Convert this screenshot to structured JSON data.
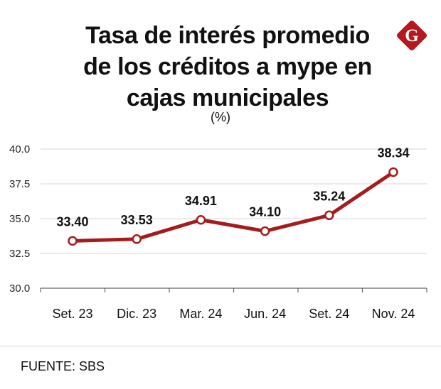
{
  "header": {
    "title": "Tasa de interés promedio\nde los créditos a mype en\ncajas municipales",
    "subtitle": "(%)"
  },
  "brand": {
    "logo_letter": "G",
    "logo_color": "#b3191f",
    "logo_icon": "diamond-g-logo"
  },
  "chart_data": {
    "type": "line",
    "title": "Tasa de interés promedio de los créditos a mype en cajas municipales",
    "subtitle": "(%)",
    "xlabel": "",
    "ylabel": "",
    "categories": [
      "Set. 23",
      "Dic. 23",
      "Mar. 24",
      "Jun. 24",
      "Set. 24",
      "Nov. 24"
    ],
    "series": [
      {
        "name": "Tasa de interés promedio",
        "values": [
          33.4,
          33.53,
          34.91,
          34.1,
          35.24,
          38.34
        ],
        "labels": [
          "33.40",
          "33.53",
          "34.91",
          "34.10",
          "35.24",
          "38.34"
        ],
        "color": "#a51c1c"
      }
    ],
    "ylim": [
      30.0,
      40.0
    ],
    "yticks": [
      30.0,
      32.5,
      35.0,
      37.5,
      40.0
    ],
    "ytick_labels": [
      "30.0",
      "32.5",
      "35.0",
      "37.5",
      "40.0"
    ],
    "grid": true,
    "legend": "none"
  },
  "source": {
    "text": "FUENTE: SBS"
  }
}
